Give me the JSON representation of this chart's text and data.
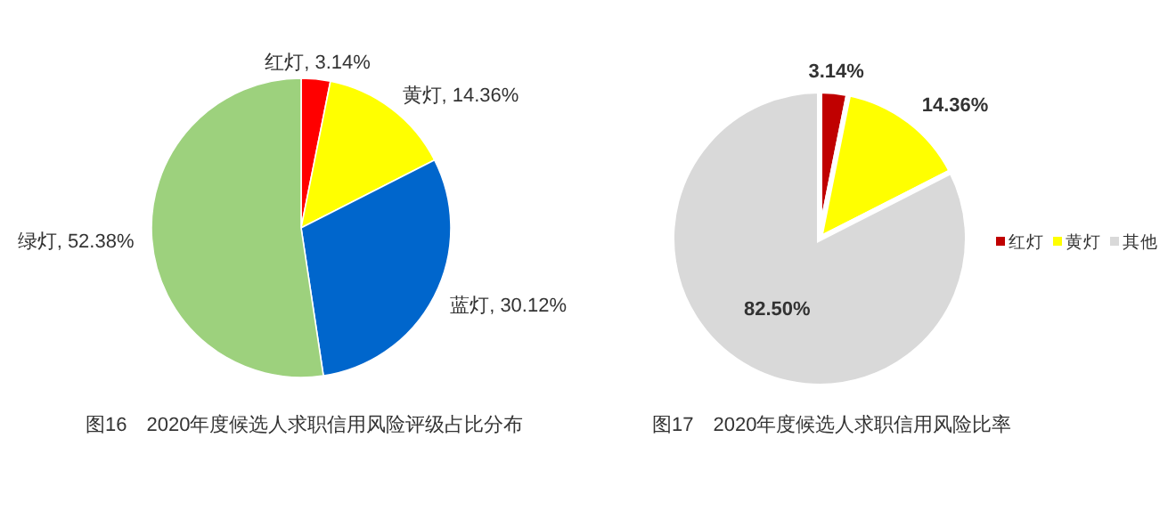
{
  "chart_data": [
    {
      "type": "pie",
      "title": "图16　2020年度候选人求职信用风险评级占比分布",
      "categories": [
        "红灯",
        "黄灯",
        "蓝灯",
        "绿灯"
      ],
      "values": [
        3.14,
        14.36,
        30.12,
        52.38
      ],
      "value_labels": [
        "3.14%",
        "14.36%",
        "30.12%",
        "52.38%"
      ],
      "colors": [
        "#ff0000",
        "#ffff00",
        "#0066cc",
        "#9dd17d"
      ],
      "legend": false
    },
    {
      "type": "pie",
      "title": "图17　2020年度候选人求职信用风险比率",
      "categories": [
        "红灯",
        "黄灯",
        "其他"
      ],
      "values": [
        3.14,
        14.36,
        82.5
      ],
      "value_labels": [
        "3.14%",
        "14.36%",
        "82.50%"
      ],
      "colors": [
        "#c00000",
        "#ffff00",
        "#d9d9d9"
      ],
      "legend": "right"
    }
  ]
}
